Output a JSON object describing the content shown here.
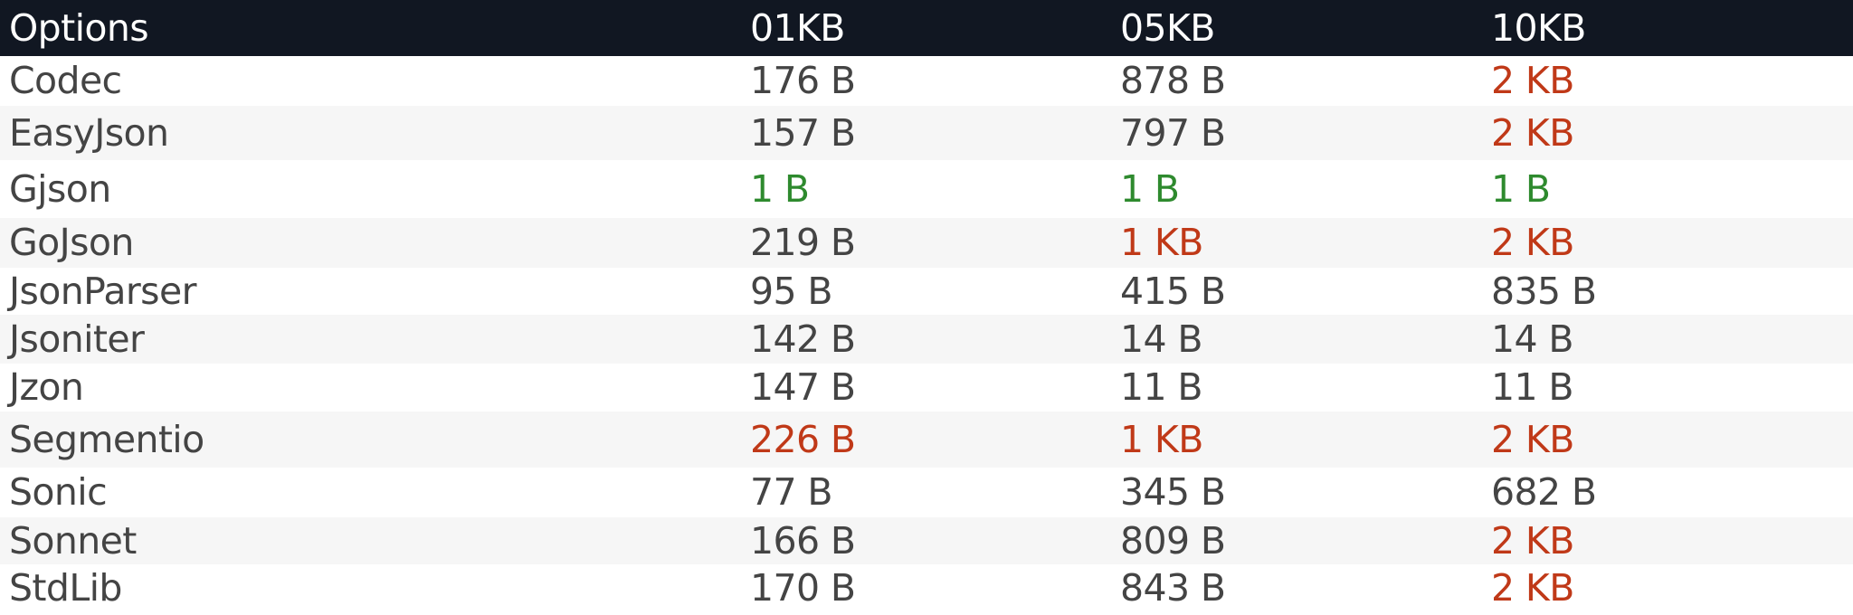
{
  "header": {
    "options": "Options",
    "col1": "01KB",
    "col2": "05KB",
    "col3": "10KB"
  },
  "rows": [
    {
      "name": "Codec",
      "v1": "176 B",
      "v2": "878 B",
      "v3": "2 KB"
    },
    {
      "name": "EasyJson",
      "v1": "157 B",
      "v2": "797 B",
      "v3": "2 KB"
    },
    {
      "name": "Gjson",
      "v1": "1 B",
      "v2": "1 B",
      "v3": "1 B"
    },
    {
      "name": "GoJson",
      "v1": "219 B",
      "v2": "1 KB",
      "v3": "2 KB"
    },
    {
      "name": "JsonParser",
      "v1": "95 B",
      "v2": "415 B",
      "v3": "835 B"
    },
    {
      "name": "Jsoniter",
      "v1": "142 B",
      "v2": "14 B",
      "v3": "14 B"
    },
    {
      "name": "Jzon",
      "v1": "147 B",
      "v2": "11 B",
      "v3": "11 B"
    },
    {
      "name": "Segmentio",
      "v1": "226 B",
      "v2": "1 KB",
      "v3": "2 KB"
    },
    {
      "name": "Sonic",
      "v1": "77 B",
      "v2": "345 B",
      "v3": "682 B"
    },
    {
      "name": "Sonnet",
      "v1": "166 B",
      "v2": "809 B",
      "v3": "2 KB"
    },
    {
      "name": "StdLib",
      "v1": "170 B",
      "v2": "843 B",
      "v3": "2 KB"
    }
  ],
  "colors": {
    "header_bg": "#111722",
    "header_text": "#ffffff",
    "normal_text": "#444444",
    "good": "#2e8a2e",
    "bad": "#c03918",
    "stripe": "#f6f6f6"
  }
}
